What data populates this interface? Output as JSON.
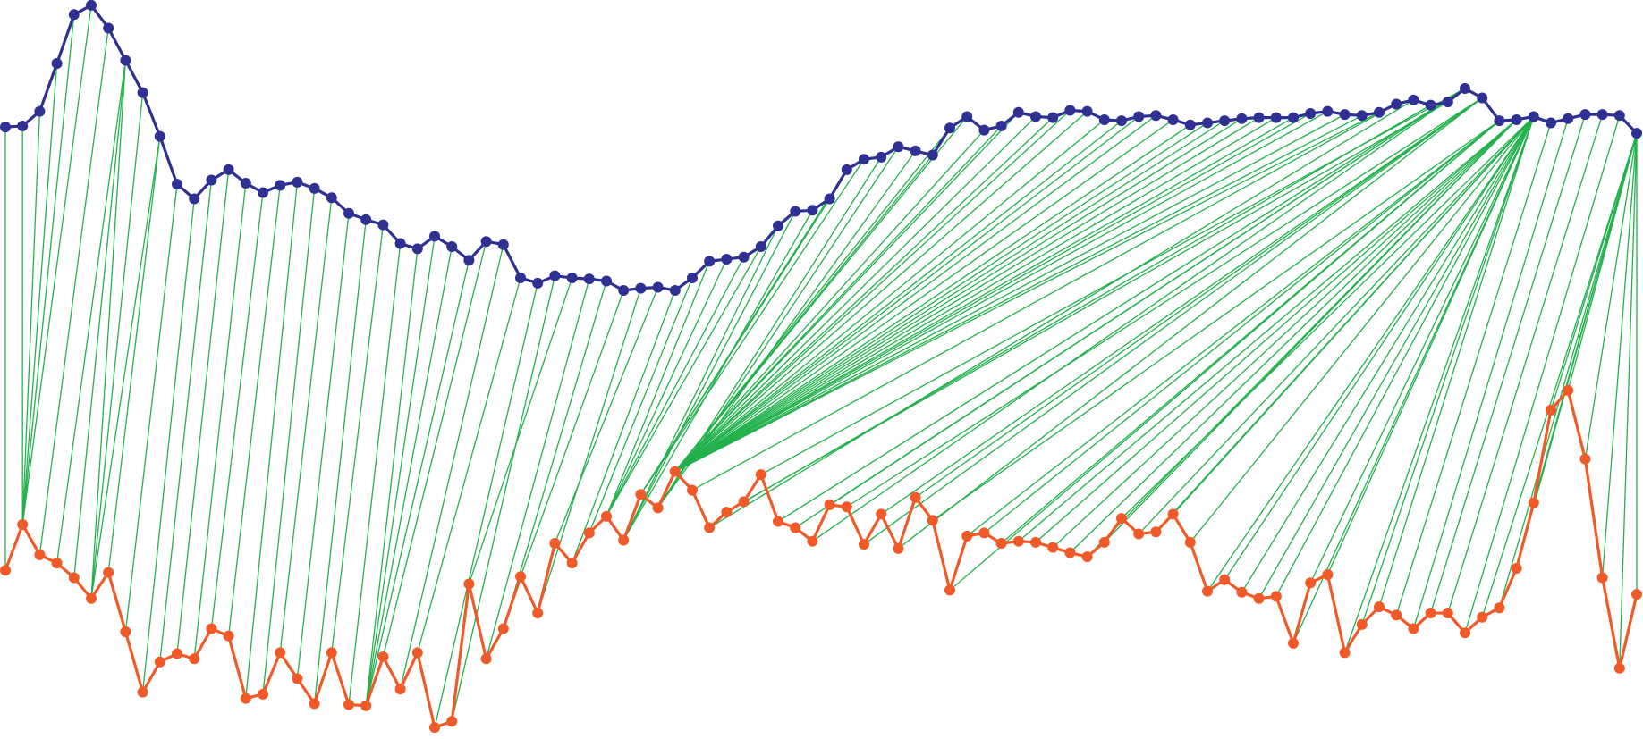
{
  "chart_data": {
    "type": "line",
    "ylim": [
      0,
      710
    ],
    "alignment_color": "#22b14c",
    "series": [
      {
        "color": "#2e3192",
        "values": [
          588,
          589,
          603,
          649,
          696,
          705,
          683,
          652,
          621,
          579,
          533,
          519,
          537,
          547,
          534,
          525,
          532,
          535,
          529,
          520,
          505,
          499,
          494,
          476,
          471,
          483,
          473,
          460,
          478,
          475,
          443,
          438,
          445,
          443,
          442,
          440,
          431,
          433,
          434,
          431,
          443,
          459,
          461,
          463,
          473,
          493,
          507,
          508,
          519,
          547,
          557,
          559,
          569,
          565,
          561,
          587,
          598,
          585,
          589,
          602,
          598,
          597,
          604,
          603,
          595,
          594,
          598,
          599,
          595,
          590,
          592,
          594,
          596,
          597,
          597,
          597,
          601,
          603,
          600,
          599,
          602,
          610,
          614,
          609,
          612,
          625,
          616,
          594,
          595,
          598,
          592,
          596,
          600,
          600,
          599,
          582
        ]
      },
      {
        "color": "#f05a28",
        "values": [
          162,
          206,
          177,
          169,
          155,
          135,
          160,
          103,
          45,
          74,
          82,
          77,
          106,
          99,
          39,
          43,
          83,
          58,
          34,
          83,
          33,
          32,
          79,
          48,
          83,
          11,
          17,
          149,
          77,
          106,
          156,
          121,
          188,
          169,
          198,
          214,
          191,
          235,
          222,
          257,
          239,
          203,
          218,
          228,
          254,
          209,
          203,
          190,
          225,
          223,
          187,
          216,
          183,
          232,
          210,
          143,
          195,
          198,
          188,
          190,
          189,
          184,
          179,
          175,
          189,
          212,
          197,
          199,
          216,
          189,
          142,
          153,
          141,
          135,
          137,
          92,
          150,
          158,
          83,
          110,
          127,
          119,
          106,
          121,
          121,
          102,
          117,
          126,
          164,
          227,
          316,
          335,
          269,
          155,
          68,
          139
        ]
      }
    ],
    "alignment": [
      [
        0,
        0
      ],
      [
        1,
        1
      ],
      [
        2,
        1
      ],
      [
        3,
        1
      ],
      [
        4,
        1
      ],
      [
        5,
        1
      ],
      [
        6,
        2
      ],
      [
        7,
        3
      ],
      [
        7,
        4
      ],
      [
        7,
        5
      ],
      [
        8,
        5
      ],
      [
        9,
        5
      ],
      [
        9,
        6
      ],
      [
        10,
        7
      ],
      [
        11,
        8
      ],
      [
        12,
        9
      ],
      [
        13,
        10
      ],
      [
        14,
        11
      ],
      [
        15,
        12
      ],
      [
        16,
        13
      ],
      [
        17,
        14
      ],
      [
        18,
        15
      ],
      [
        19,
        16
      ],
      [
        20,
        17
      ],
      [
        21,
        18
      ],
      [
        22,
        19
      ],
      [
        23,
        20
      ],
      [
        24,
        21
      ],
      [
        25,
        21
      ],
      [
        26,
        21
      ],
      [
        27,
        21
      ],
      [
        28,
        22
      ],
      [
        29,
        23
      ],
      [
        30,
        24
      ],
      [
        31,
        25
      ],
      [
        32,
        26
      ],
      [
        33,
        27
      ],
      [
        34,
        28
      ],
      [
        35,
        29
      ],
      [
        36,
        30
      ],
      [
        37,
        31
      ],
      [
        38,
        32
      ],
      [
        39,
        33
      ],
      [
        40,
        34
      ],
      [
        41,
        35
      ],
      [
        42,
        35
      ],
      [
        43,
        35
      ],
      [
        44,
        35
      ],
      [
        45,
        36
      ],
      [
        46,
        36
      ],
      [
        47,
        36
      ],
      [
        48,
        37
      ],
      [
        49,
        37
      ],
      [
        50,
        37
      ],
      [
        51,
        38
      ],
      [
        52,
        38
      ],
      [
        53,
        38
      ],
      [
        54,
        39
      ],
      [
        55,
        39
      ],
      [
        56,
        39
      ],
      [
        57,
        39
      ],
      [
        58,
        39
      ],
      [
        59,
        39
      ],
      [
        60,
        39
      ],
      [
        61,
        39
      ],
      [
        62,
        39
      ],
      [
        63,
        39
      ],
      [
        64,
        39
      ],
      [
        65,
        39
      ],
      [
        66,
        39
      ],
      [
        67,
        39
      ],
      [
        68,
        39
      ],
      [
        69,
        39
      ],
      [
        70,
        39
      ],
      [
        71,
        39
      ],
      [
        72,
        39
      ],
      [
        73,
        39
      ],
      [
        74,
        39
      ],
      [
        75,
        39
      ],
      [
        76,
        39
      ],
      [
        77,
        39
      ],
      [
        78,
        39
      ],
      [
        79,
        39
      ],
      [
        80,
        39
      ],
      [
        81,
        40
      ],
      [
        82,
        41
      ],
      [
        83,
        42
      ],
      [
        84,
        43
      ],
      [
        85,
        44
      ],
      [
        85,
        45
      ],
      [
        85,
        46
      ],
      [
        85,
        47
      ],
      [
        85,
        48
      ],
      [
        86,
        49
      ],
      [
        86,
        50
      ],
      [
        86,
        51
      ],
      [
        86,
        52
      ],
      [
        86,
        53
      ],
      [
        87,
        54
      ],
      [
        87,
        55
      ],
      [
        87,
        56
      ],
      [
        87,
        57
      ],
      [
        87,
        58
      ],
      [
        88,
        59
      ],
      [
        88,
        60
      ],
      [
        88,
        61
      ],
      [
        88,
        62
      ],
      [
        88,
        63
      ],
      [
        88,
        64
      ],
      [
        89,
        65
      ],
      [
        89,
        66
      ],
      [
        89,
        67
      ],
      [
        89,
        68
      ],
      [
        89,
        69
      ],
      [
        89,
        70
      ],
      [
        89,
        71
      ],
      [
        89,
        72
      ],
      [
        89,
        73
      ],
      [
        89,
        74
      ],
      [
        89,
        75
      ],
      [
        89,
        76
      ],
      [
        89,
        77
      ],
      [
        89,
        78
      ],
      [
        89,
        79
      ],
      [
        89,
        80
      ],
      [
        90,
        81
      ],
      [
        91,
        82
      ],
      [
        92,
        83
      ],
      [
        93,
        84
      ],
      [
        94,
        85
      ],
      [
        95,
        86
      ],
      [
        95,
        87
      ],
      [
        95,
        88
      ],
      [
        95,
        89
      ],
      [
        95,
        90
      ],
      [
        95,
        91
      ],
      [
        95,
        92
      ],
      [
        95,
        93
      ],
      [
        95,
        94
      ],
      [
        95,
        95
      ]
    ]
  }
}
